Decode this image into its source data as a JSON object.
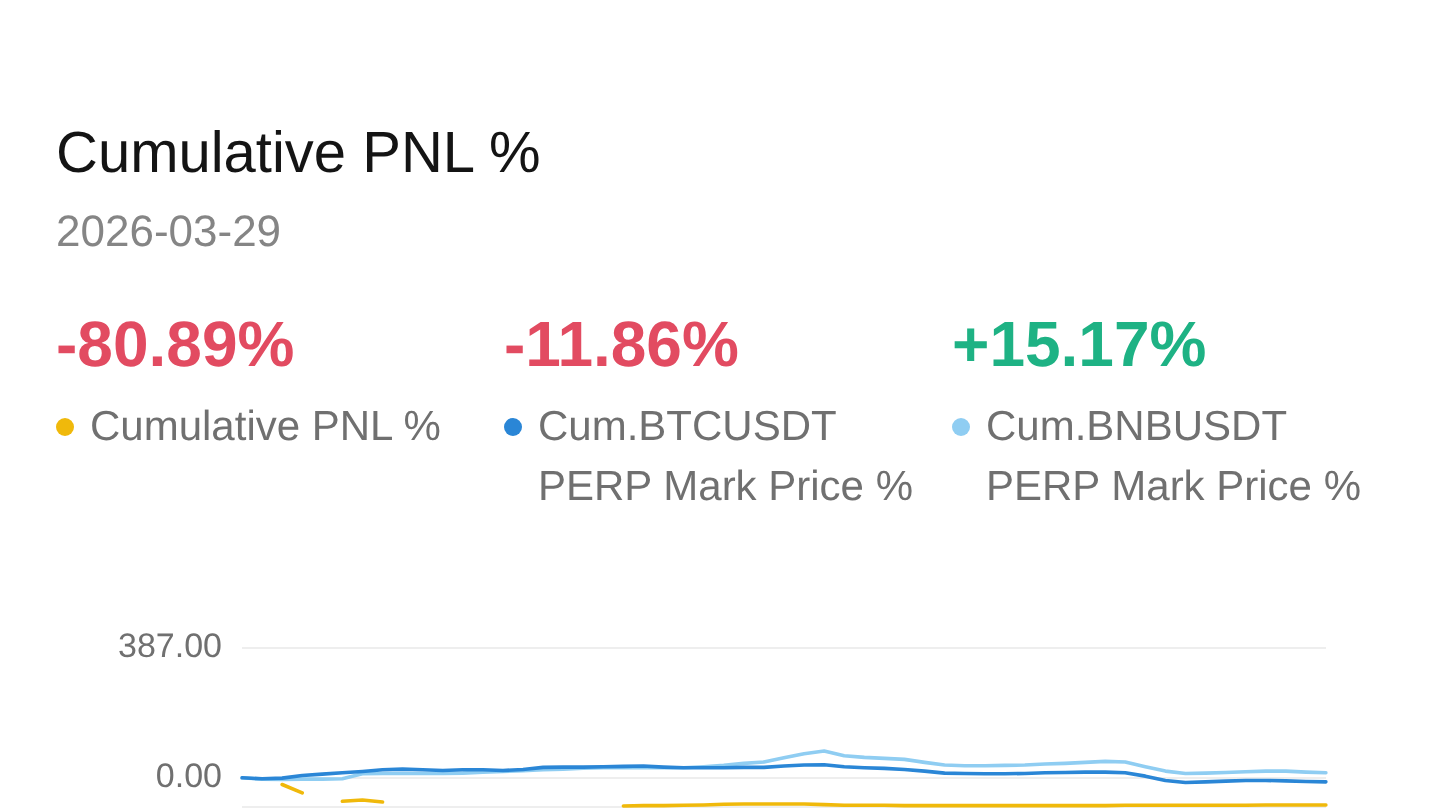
{
  "chart_data": {
    "type": "line",
    "title": "Cumulative PNL %",
    "subtitle": "2026-03-29",
    "categories": [
      null,
      null,
      null,
      null,
      null,
      null,
      null,
      null,
      null,
      null,
      null,
      null,
      null,
      null,
      null,
      null,
      null,
      null,
      null,
      null,
      null,
      null,
      null,
      null,
      null,
      null,
      null,
      null,
      null,
      null,
      null,
      null,
      null,
      null,
      null,
      null,
      null,
      null,
      null,
      null,
      null,
      null,
      null,
      null,
      null,
      null,
      null,
      null,
      null,
      null,
      null,
      null,
      null,
      null,
      null
    ],
    "series": [
      {
        "name": "Cumulative PNL %",
        "color": "#f0b90b",
        "values": [
          null,
          null,
          -20,
          -45,
          null,
          -70,
          -66,
          -72,
          null,
          null,
          null,
          null,
          null,
          null,
          null,
          null,
          null,
          null,
          null,
          -84,
          -83,
          -83,
          -82,
          -81,
          -79,
          -78,
          -78,
          -78,
          -78,
          -80,
          -82,
          -82,
          -82,
          -83,
          -83,
          -83,
          -83,
          -83,
          -83,
          -83,
          -83,
          -83,
          -83,
          -83,
          -82,
          -82,
          -82,
          -82,
          -82,
          -82,
          -82,
          -81,
          -81,
          -81,
          -81
        ]
      },
      {
        "name": "Cum.BTCUSDT PERP Mark Price %",
        "color": "#2a86d6",
        "values": [
          0,
          -3,
          -1,
          7,
          11,
          15,
          19,
          24,
          26,
          24,
          22,
          24,
          24,
          22,
          25,
          31,
          32,
          32,
          33,
          34,
          35,
          32,
          30,
          30,
          30,
          31,
          31,
          35,
          38,
          39,
          33,
          30,
          28,
          25,
          20,
          14,
          13,
          12,
          12,
          13,
          15,
          16,
          17,
          17,
          15,
          5,
          -8,
          -14,
          -12,
          -10,
          -8,
          -8,
          -9,
          -11,
          -12
        ]
      },
      {
        "name": "Cum.BNBUSDT PERP Mark Price %",
        "color": "#8fcdf2",
        "values": [
          0,
          -4,
          -5,
          -4,
          -4,
          -3,
          12,
          13,
          13,
          13,
          13,
          14,
          17,
          19,
          21,
          24,
          26,
          29,
          30,
          30,
          30,
          30,
          30,
          33,
          37,
          43,
          47,
          60,
          72,
          80,
          66,
          61,
          58,
          55,
          46,
          38,
          36,
          36,
          37,
          38,
          41,
          43,
          46,
          49,
          47,
          33,
          20,
          13,
          14,
          16,
          18,
          20,
          20,
          17,
          15
        ]
      }
    ],
    "annotations": [
      "-80.89%",
      "-11.86%",
      "+15.17%"
    ],
    "ylim": [
      -90,
      387
    ],
    "yticks": [
      {
        "value": 387,
        "label": "387.00"
      },
      {
        "value": 0,
        "label": "0.00"
      }
    ],
    "grid": "y",
    "legend": "top"
  }
}
